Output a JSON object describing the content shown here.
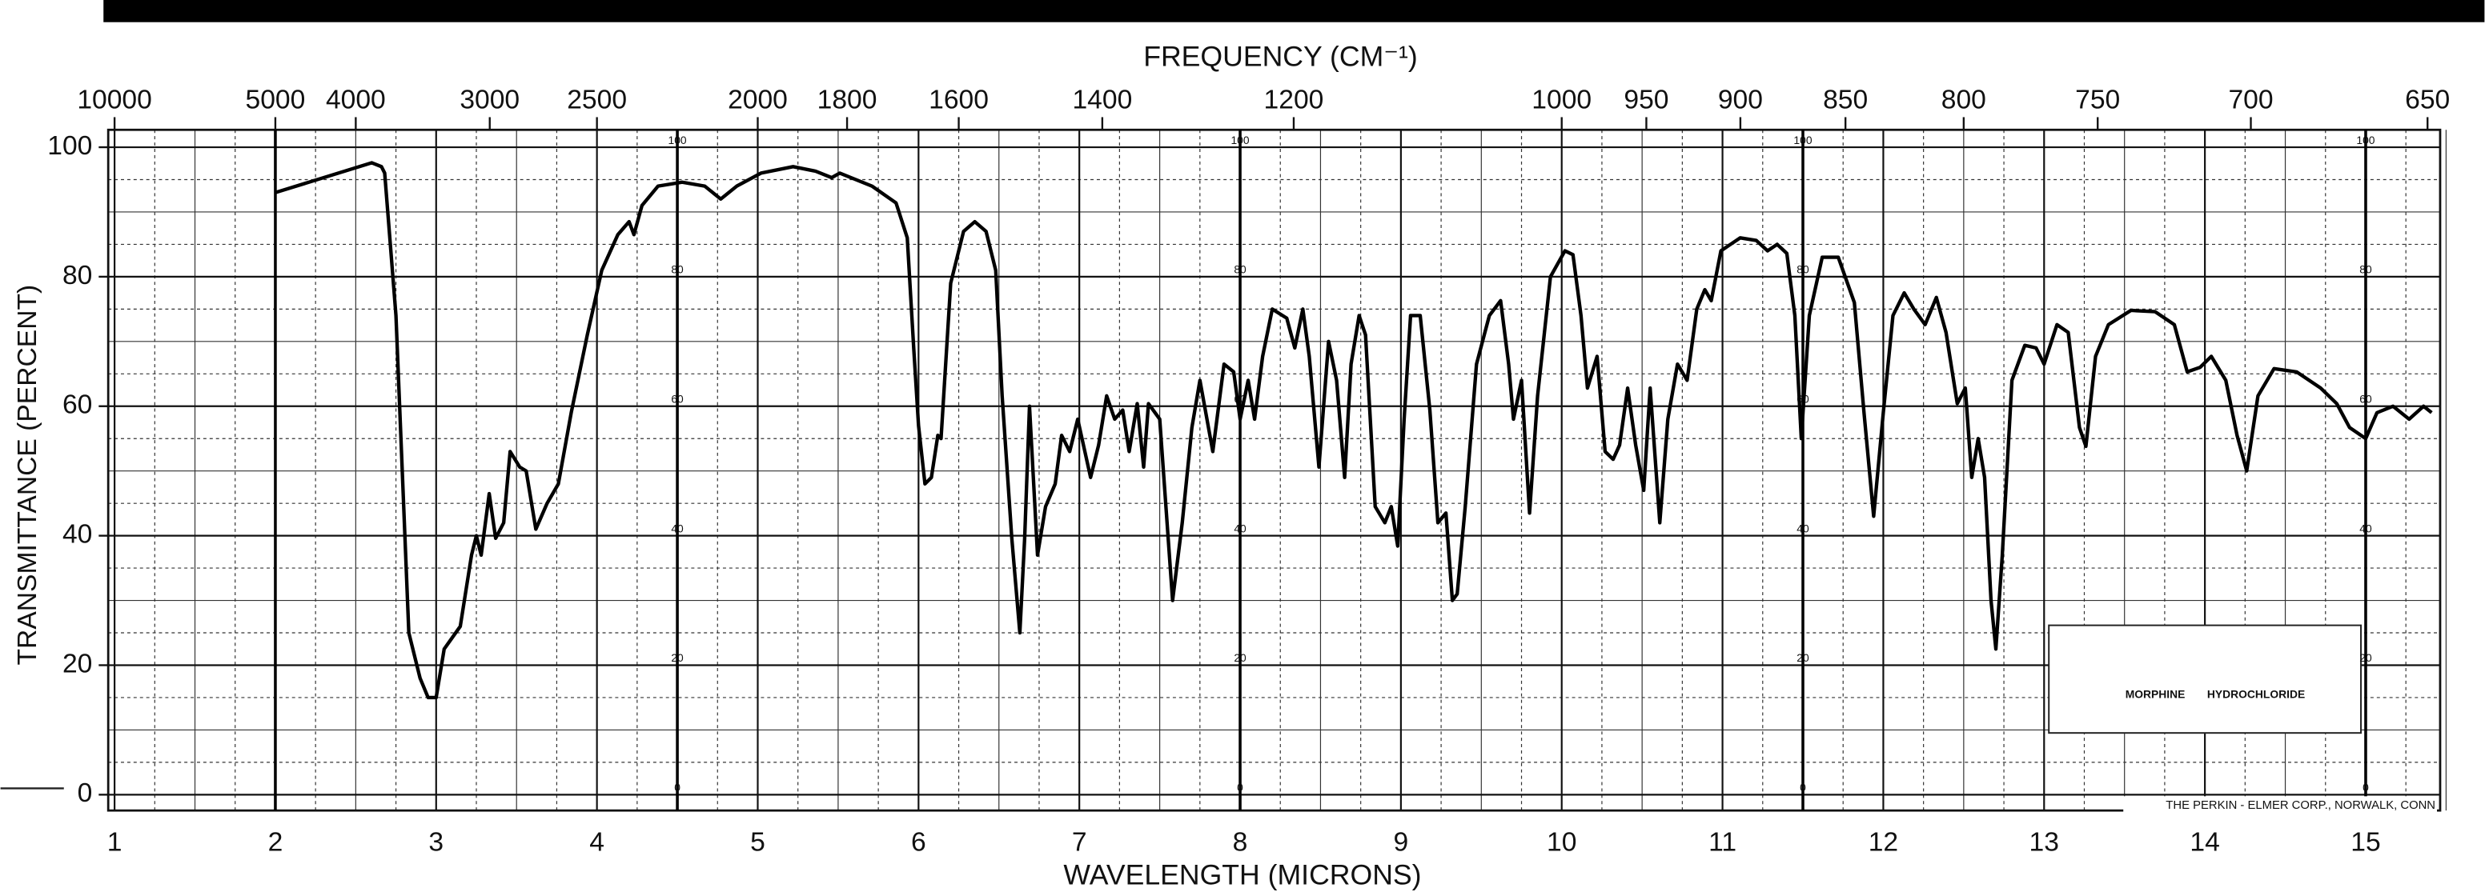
{
  "chart_data": {
    "type": "line",
    "title": "FREQUENCY (CM⁻¹)",
    "x_label": "WAVELENGTH (MICRONS)",
    "y_label": "TRANSMITTANCE (PERCENT)",
    "sample_label": "MORPHINE HYDROCHLORIDE",
    "credit": "THE PERKIN - ELMER CORP., NORWALK, CONN",
    "color": "#000000",
    "grid": true,
    "xlim": [
      1,
      15.5
    ],
    "ylim": [
      0,
      100
    ],
    "xticks": [
      1,
      2,
      3,
      4,
      5,
      6,
      7,
      8,
      9,
      10,
      11,
      12,
      13,
      14,
      15
    ],
    "yticks": [
      0,
      20,
      40,
      60,
      80,
      100
    ],
    "x2scale": "reciprocal",
    "x2ticks": [
      10000,
      5000,
      4000,
      3000,
      2500,
      2000,
      1800,
      1600,
      1400,
      1200,
      1000,
      950,
      900,
      850,
      800,
      750,
      700,
      650
    ],
    "x": [
      2.0,
      2.6,
      2.66,
      2.68,
      2.75,
      2.83,
      2.9,
      2.95,
      3.0,
      3.05,
      3.15,
      3.22,
      3.25,
      3.28,
      3.33,
      3.37,
      3.42,
      3.46,
      3.52,
      3.56,
      3.62,
      3.69,
      3.76,
      3.84,
      3.94,
      4.03,
      4.13,
      4.2,
      4.23,
      4.28,
      4.38,
      4.53,
      4.67,
      4.77,
      4.87,
      5.02,
      5.22,
      5.36,
      5.46,
      5.51,
      5.71,
      5.86,
      5.93,
      5.97,
      6.0,
      6.04,
      6.08,
      6.12,
      6.14,
      6.2,
      6.28,
      6.35,
      6.42,
      6.48,
      6.52,
      6.58,
      6.63,
      6.66,
      6.69,
      6.74,
      6.79,
      6.85,
      6.89,
      6.94,
      6.99,
      7.07,
      7.12,
      7.17,
      7.22,
      7.27,
      7.31,
      7.36,
      7.4,
      7.43,
      7.5,
      7.58,
      7.64,
      7.7,
      7.75,
      7.83,
      7.9,
      7.96,
      8.0,
      8.05,
      8.09,
      8.14,
      8.2,
      8.29,
      8.34,
      8.39,
      8.43,
      8.49,
      8.55,
      8.6,
      8.65,
      8.69,
      8.74,
      8.78,
      8.84,
      8.9,
      8.94,
      8.98,
      9.02,
      9.06,
      9.12,
      9.18,
      9.23,
      9.28,
      9.32,
      9.35,
      9.4,
      9.47,
      9.55,
      9.62,
      9.67,
      9.7,
      9.75,
      9.8,
      9.85,
      9.93,
      10.02,
      10.07,
      10.12,
      10.16,
      10.22,
      10.27,
      10.32,
      10.36,
      10.41,
      10.46,
      10.51,
      10.55,
      10.61,
      10.66,
      10.72,
      10.78,
      10.84,
      10.89,
      10.93,
      10.99,
      11.11,
      11.21,
      11.28,
      11.34,
      11.4,
      11.45,
      11.49,
      11.54,
      11.62,
      11.72,
      11.82,
      11.88,
      11.94,
      12.0,
      12.06,
      12.13,
      12.19,
      12.26,
      12.33,
      12.39,
      12.46,
      12.51,
      12.55,
      12.59,
      12.63,
      12.67,
      12.7,
      12.74,
      12.8,
      12.88,
      12.95,
      13.0,
      13.08,
      13.15,
      13.22,
      13.26,
      13.32,
      13.4,
      13.54,
      13.69,
      13.81,
      13.89,
      13.97,
      14.04,
      14.13,
      14.2,
      14.26,
      14.33,
      14.43,
      14.57,
      14.72,
      14.82,
      14.9,
      15.0,
      15.07,
      15.17,
      15.27,
      15.36,
      15.41
    ],
    "values": [
      93,
      97.6,
      97,
      96,
      74,
      25,
      18,
      15,
      15,
      22.5,
      26,
      37,
      40,
      37,
      46.5,
      39.6,
      42,
      53,
      50.6,
      50,
      41,
      45,
      48,
      59,
      71,
      81,
      86.5,
      88.5,
      86.5,
      91,
      94,
      94.6,
      94,
      92,
      94,
      96,
      97,
      96.3,
      95.3,
      96,
      94,
      91.4,
      86,
      69,
      57,
      48,
      49,
      55.5,
      55,
      79,
      87,
      88.5,
      87,
      81,
      61.6,
      39.6,
      25,
      39.6,
      60,
      37,
      44.5,
      48,
      55.5,
      53,
      58,
      49,
      54,
      61.6,
      58,
      59.4,
      53,
      60.4,
      50.6,
      60.4,
      58,
      30,
      42,
      56.7,
      64,
      53,
      66.5,
      65.3,
      58,
      64,
      58,
      67.7,
      75,
      73.6,
      69,
      75,
      67.7,
      50.6,
      70,
      64,
      49,
      66.5,
      74,
      71,
      44.5,
      42,
      44.5,
      38.4,
      58,
      74,
      74,
      59.4,
      42,
      43.5,
      30,
      31,
      44.5,
      66.5,
      74,
      76.3,
      66.5,
      58,
      64,
      43.5,
      61.6,
      80,
      84,
      83.4,
      74,
      62.8,
      67.7,
      53,
      51.8,
      54,
      62.8,
      54,
      47,
      62.8,
      42,
      58,
      66.5,
      64,
      75,
      78,
      76.3,
      84,
      86,
      85.6,
      84,
      85,
      83.6,
      74,
      55,
      74,
      83,
      83,
      76,
      59,
      43,
      59,
      74,
      77.5,
      75,
      72.6,
      76.8,
      71.4,
      60.4,
      62.8,
      49,
      55,
      49,
      30,
      22.5,
      37,
      64,
      69.4,
      69,
      66.5,
      72.6,
      71.4,
      56.7,
      53.8,
      67.7,
      72.6,
      74.8,
      74.6,
      72.6,
      65.3,
      66,
      67.7,
      64,
      55.5,
      50,
      61.6,
      65.8,
      65.3,
      62.8,
      60.4,
      56.7,
      55,
      59,
      60,
      58,
      60,
      59
    ]
  }
}
